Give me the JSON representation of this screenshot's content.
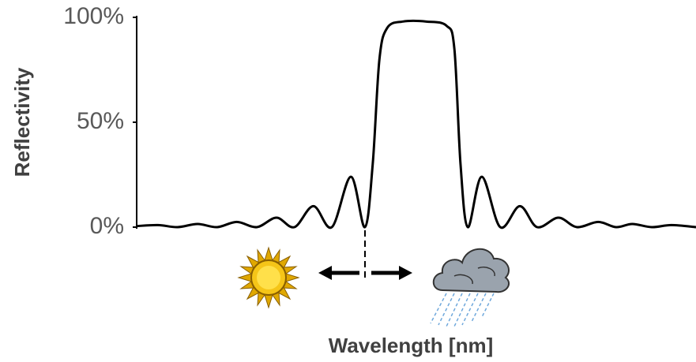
{
  "chart_data": {
    "type": "line",
    "y_label": "Reflectivity",
    "x_label": "Wavelength [nm]",
    "x": [
      0,
      3.8,
      7.3,
      10.9,
      14.4,
      17.9,
      21.5,
      25,
      28.2,
      31.6,
      34.9,
      38.3,
      40.8,
      42.2,
      43.4,
      44.8,
      47.6,
      51.8,
      55.4,
      56.8,
      57.9,
      59.2,
      61.7,
      65,
      68.5,
      71.6,
      75.4,
      78.7,
      82.5,
      85.7,
      88.6,
      92.1,
      95.6,
      100
    ],
    "values": [
      0.5,
      1,
      0,
      1.5,
      0,
      2.5,
      0,
      4.5,
      0,
      10,
      0,
      24,
      0,
      30,
      80,
      95,
      98,
      98,
      96,
      85,
      30,
      0,
      24,
      0,
      10,
      0,
      4.5,
      0,
      2.5,
      0,
      1.5,
      0,
      1,
      0
    ],
    "color": "#000000",
    "xlim": [
      0,
      100
    ],
    "ylim": [
      0,
      100
    ],
    "yticks": [
      {
        "value": 0,
        "label": "0%"
      },
      {
        "value": 50,
        "label": "50%"
      },
      {
        "value": 100,
        "label": "100%"
      }
    ]
  }
}
